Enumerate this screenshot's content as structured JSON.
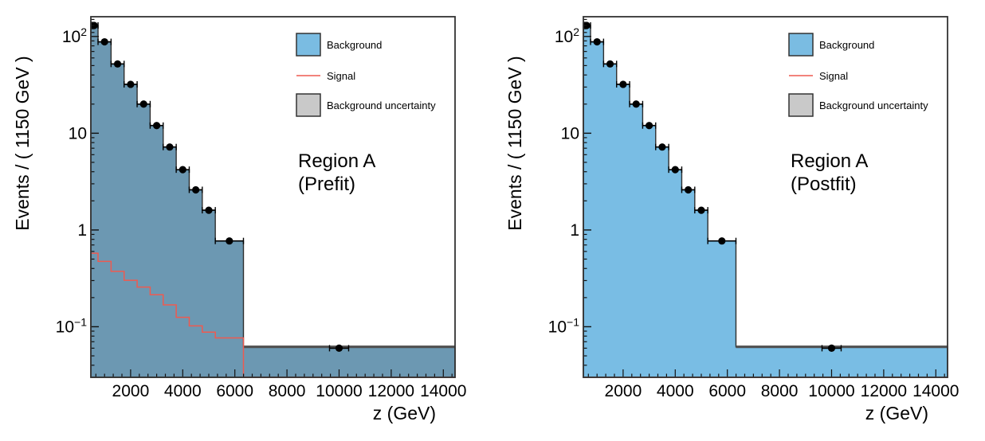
{
  "page": {
    "background": "#ffffff"
  },
  "shared": {
    "xlabel": "z (GeV)",
    "ylabel": "Events / ( 1150 GeV )",
    "x_tick_labels": [
      "2000",
      "4000",
      "6000",
      "8000",
      "10000",
      "12000",
      "14000"
    ],
    "x_tick_values": [
      2000,
      4000,
      6000,
      8000,
      10000,
      12000,
      14000
    ],
    "y_tick_labels": [
      {
        "base": "10",
        "sup": "2",
        "value": 100
      },
      {
        "base": "10",
        "sup": "",
        "value": 10
      },
      {
        "base": "1",
        "sup": "",
        "value": 1
      },
      {
        "base": "10",
        "sup": "−1",
        "value": 0.1
      }
    ],
    "legend": [
      {
        "label": "Background",
        "swatch": "blue-box"
      },
      {
        "label": "Signal",
        "swatch": "red-line"
      },
      {
        "label": "Background uncertainty",
        "swatch": "gray-box"
      }
    ],
    "colors": {
      "legend_background_blue": "#7abce2",
      "prefit_fill": "#6c98b2",
      "postfit_fill": "#79bde4",
      "signal_red": "#ee5a50",
      "uncertainty_gray": "#c9c9c9",
      "uncertainty_band": "#4f4f4f",
      "histogram_outline": "#2f2f2f",
      "frame": "#333333",
      "marker": "#000000"
    }
  },
  "chart_data": [
    {
      "type": "histogram",
      "name": "prefit",
      "region_lines": [
        "Region A",
        "(Prefit)"
      ],
      "xlabel": "z (GeV)",
      "ylabel": "Events / ( 1150 GeV )",
      "xlim": [
        474,
        14450
      ],
      "ylim_log": [
        0.03,
        160
      ],
      "x_scale": "linear",
      "y_scale": "log",
      "bin_edges": [
        474,
        750,
        1250,
        1750,
        2250,
        2750,
        3250,
        3750,
        4250,
        4750,
        5250,
        6330,
        14450
      ],
      "series": [
        {
          "name": "Background",
          "type": "filled-step",
          "values": [
            130,
            88,
            52,
            32,
            20,
            12,
            7.2,
            4.2,
            2.6,
            1.6,
            0.77,
            0.062
          ]
        },
        {
          "name": "Signal",
          "type": "line-step",
          "values": [
            0.575,
            0.473,
            0.374,
            0.302,
            0.257,
            0.214,
            0.168,
            0.125,
            0.102,
            0.088,
            0.0766,
            0.03
          ]
        },
        {
          "name": "Data",
          "type": "points",
          "x": [
            600,
            1000,
            1500,
            2000,
            2500,
            3000,
            3500,
            4000,
            4500,
            5000,
            5790,
            10000
          ],
          "y": [
            130,
            88,
            52,
            32,
            20,
            12,
            7.2,
            4.2,
            2.6,
            1.6,
            0.77,
            0.06
          ]
        }
      ]
    },
    {
      "type": "histogram",
      "name": "postfit",
      "region_lines": [
        "Region A",
        "(Postfit)"
      ],
      "xlabel": "z (GeV)",
      "ylabel": "Events / ( 1150 GeV )",
      "xlim": [
        474,
        14450
      ],
      "ylim_log": [
        0.03,
        160
      ],
      "x_scale": "linear",
      "y_scale": "log",
      "bin_edges": [
        474,
        750,
        1250,
        1750,
        2250,
        2750,
        3250,
        3750,
        4250,
        4750,
        5250,
        6330,
        14450
      ],
      "series": [
        {
          "name": "Background",
          "type": "filled-step",
          "values": [
            130,
            88,
            52,
            32,
            20,
            12,
            7.2,
            4.2,
            2.6,
            1.6,
            0.77,
            0.062
          ]
        },
        {
          "name": "Signal",
          "type": "line-step",
          "values": [
            0.03,
            0.03,
            0.03,
            0.03,
            0.03,
            0.03,
            0.03,
            0.03,
            0.03,
            0.03,
            0.03,
            0.03
          ]
        },
        {
          "name": "Data",
          "type": "points",
          "x": [
            600,
            1000,
            1500,
            2000,
            2500,
            3000,
            3500,
            4000,
            4500,
            5000,
            5790,
            10000
          ],
          "y": [
            130,
            88,
            52,
            32,
            20,
            12,
            7.2,
            4.2,
            2.6,
            1.6,
            0.77,
            0.06
          ]
        }
      ]
    }
  ]
}
